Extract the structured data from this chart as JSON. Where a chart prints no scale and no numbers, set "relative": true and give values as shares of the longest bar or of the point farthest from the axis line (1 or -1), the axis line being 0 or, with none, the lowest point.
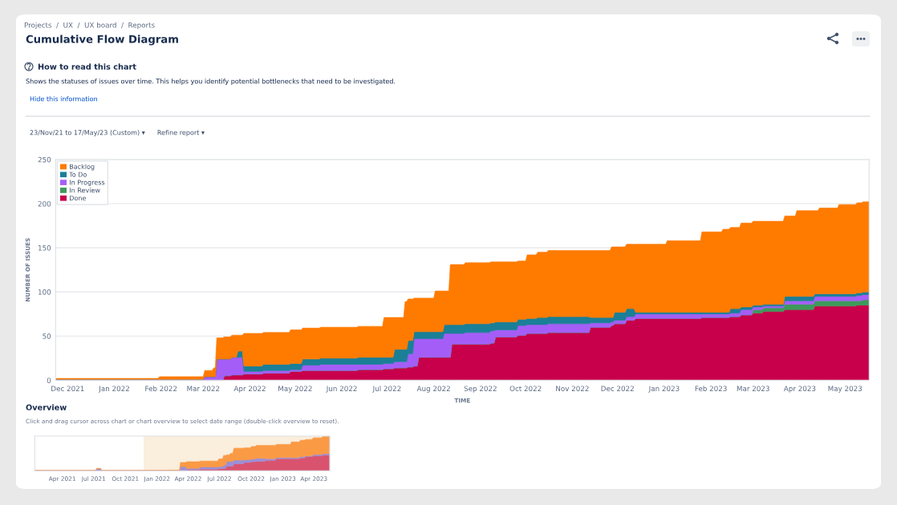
{
  "chart_data": [
    {
      "type": "area",
      "title": "Cumulative Flow Diagram",
      "subtitle": "How to read this chart",
      "annotations": [
        "Projects  /  UX  /  UX board  /  Reports",
        "Shows the statuses of issues over time. This helps you identify potential bottlenecks that need to be investigated.",
        "Hide this information",
        "23/Nov/21 to 17/May/23 (Custom) ▾",
        "Refine report ▾"
      ],
      "xlabel": "TIME",
      "ylabel": "NUMBER OF ISSUES",
      "x": [
        "2021-11-23",
        "2022-01-30",
        "2022-01-31",
        "2022-03-01",
        "2022-03-02",
        "2022-03-07",
        "2022-03-08",
        "2022-03-09",
        "2022-03-10",
        "2022-03-14",
        "2022-03-15",
        "2022-03-19",
        "2022-03-20",
        "2022-03-23",
        "2022-03-24",
        "2022-03-27",
        "2022-03-28",
        "2022-04-09",
        "2022-04-10",
        "2022-04-27",
        "2022-04-28",
        "2022-05-05",
        "2022-05-06",
        "2022-05-17",
        "2022-05-18",
        "2022-06-11",
        "2022-06-12",
        "2022-06-28",
        "2022-06-29",
        "2022-07-05",
        "2022-07-06",
        "2022-07-12",
        "2022-07-13",
        "2022-07-14",
        "2022-07-15",
        "2022-07-18",
        "2022-07-19",
        "2022-07-21",
        "2022-07-22",
        "2022-08-01",
        "2022-08-02",
        "2022-08-07",
        "2022-08-08",
        "2022-08-11",
        "2022-08-12",
        "2022-08-13",
        "2022-08-21",
        "2022-08-22",
        "2022-09-07",
        "2022-09-08",
        "2022-09-10",
        "2022-09-11",
        "2022-09-25",
        "2022-09-26",
        "2022-10-01",
        "2022-10-02",
        "2022-10-08",
        "2022-10-09",
        "2022-10-15",
        "2022-10-16",
        "2022-11-12",
        "2022-11-13",
        "2022-11-26",
        "2022-11-27",
        "2022-11-28",
        "2022-11-29",
        "2022-12-06",
        "2022-12-07",
        "2022-12-12",
        "2022-12-13",
        "2023-01-02",
        "2023-01-03",
        "2023-01-25",
        "2023-01-26",
        "2023-02-08",
        "2023-02-09",
        "2023-02-13",
        "2023-02-14",
        "2023-02-20",
        "2023-02-21",
        "2023-02-28",
        "2023-03-01",
        "2023-03-07",
        "2023-03-08",
        "2023-03-21",
        "2023-03-22",
        "2023-03-29",
        "2023-03-30",
        "2023-04-10",
        "2023-04-11",
        "2023-04-13",
        "2023-04-14",
        "2023-04-26",
        "2023-04-27",
        "2023-05-08",
        "2023-05-09",
        "2023-05-12",
        "2023-05-13",
        "2023-05-17"
      ],
      "stacked": true,
      "series": [
        {
          "name": "Done",
          "color": "#c8004b",
          "values": [
            0,
            0,
            0,
            0,
            0,
            0,
            0,
            0,
            0,
            0,
            5,
            5,
            6,
            6,
            6,
            6,
            7,
            7,
            8,
            8,
            10,
            10,
            11,
            11,
            11,
            11,
            12,
            12,
            13,
            13,
            14,
            14,
            14,
            14,
            15,
            15,
            16,
            16,
            26,
            26,
            26,
            26,
            26,
            26,
            26,
            41,
            41,
            41,
            41,
            42,
            42,
            49,
            49,
            51,
            51,
            53,
            53,
            53,
            53,
            54,
            54,
            60,
            60,
            62,
            62,
            64,
            64,
            68,
            68,
            70,
            70,
            70,
            70,
            71,
            71,
            71,
            71,
            72,
            72,
            74,
            74,
            76,
            76,
            78,
            78,
            80,
            80,
            80,
            80,
            84,
            84,
            84,
            84,
            84,
            84,
            85,
            85,
            85,
            85
          ]
        },
        {
          "name": "In Review",
          "color": "#3d9a5a",
          "values": [
            0,
            0,
            0,
            0,
            0,
            0,
            0,
            0,
            0,
            0,
            0,
            0,
            0,
            0,
            0,
            0,
            0,
            0,
            0,
            0,
            0,
            0,
            0,
            0,
            0,
            0,
            0,
            0,
            0,
            0,
            0,
            0,
            0,
            0,
            0,
            0,
            0,
            0,
            0,
            0,
            0,
            0,
            0,
            0,
            0,
            0,
            0,
            0,
            0,
            0,
            0,
            0,
            0,
            0,
            0,
            0,
            0,
            0,
            0,
            0,
            0,
            0,
            0,
            0,
            0,
            0,
            0,
            0,
            0,
            0,
            0,
            0,
            0,
            0,
            0,
            0,
            0,
            0,
            0,
            0,
            0,
            4,
            4,
            4,
            4,
            6,
            6,
            6,
            6,
            6,
            6,
            6,
            6,
            6,
            6,
            5,
            5,
            6,
            6
          ]
        },
        {
          "name": "In Progress",
          "color": "#a45ef7",
          "values": [
            1,
            1,
            1,
            1,
            4,
            4,
            4,
            4,
            24,
            24,
            19,
            19,
            20,
            20,
            20,
            20,
            3,
            3,
            3,
            3,
            2,
            2,
            6,
            6,
            7,
            7,
            6,
            6,
            6,
            6,
            7,
            7,
            7,
            7,
            15,
            15,
            31,
            31,
            21,
            21,
            21,
            21,
            27,
            27,
            27,
            12,
            12,
            13,
            13,
            14,
            14,
            8,
            8,
            11,
            11,
            10,
            10,
            10,
            10,
            10,
            10,
            5,
            5,
            4,
            4,
            4,
            4,
            4,
            4,
            5,
            5,
            5,
            5,
            4,
            4,
            4,
            4,
            4,
            4,
            6,
            6,
            3,
            3,
            2,
            2,
            4,
            4,
            4,
            4,
            5,
            5,
            5,
            5,
            5,
            5,
            6,
            6,
            6,
            6
          ]
        },
        {
          "name": "To Do",
          "color": "#1b7f97",
          "values": [
            0,
            0,
            0,
            0,
            0,
            0,
            0,
            0,
            0,
            0,
            0,
            0,
            0,
            0,
            7,
            7,
            6,
            6,
            7,
            7,
            7,
            7,
            7,
            7,
            7,
            7,
            8,
            8,
            7,
            7,
            14,
            14,
            14,
            14,
            15,
            15,
            8,
            8,
            8,
            8,
            8,
            8,
            10,
            10,
            10,
            10,
            10,
            10,
            10,
            9,
            9,
            9,
            9,
            7,
            7,
            7,
            7,
            8,
            8,
            8,
            8,
            6,
            6,
            5,
            5,
            9,
            9,
            9,
            9,
            2,
            2,
            2,
            2,
            2,
            2,
            2,
            2,
            5,
            5,
            3,
            3,
            2,
            2,
            2,
            2,
            5,
            5,
            5,
            5,
            3,
            3,
            3,
            3,
            3,
            3,
            3,
            3,
            3,
            3
          ]
        },
        {
          "name": "Backlog",
          "color": "#ff7b00",
          "values": [
            1,
            1,
            3,
            3,
            7,
            7,
            10,
            10,
            24,
            24,
            25,
            25,
            25,
            25,
            18,
            18,
            37,
            37,
            36,
            36,
            38,
            38,
            35,
            35,
            35,
            35,
            35,
            35,
            45,
            45,
            36,
            36,
            54,
            54,
            47,
            47,
            38,
            38,
            38,
            38,
            46,
            46,
            38,
            38,
            68,
            68,
            68,
            69,
            69,
            69,
            69,
            68,
            68,
            66,
            66,
            72,
            72,
            74,
            74,
            75,
            75,
            76,
            76,
            80,
            80,
            74,
            74,
            73,
            73,
            77,
            77,
            81,
            81,
            91,
            91,
            94,
            94,
            92,
            92,
            95,
            95,
            95,
            95,
            94,
            94,
            91,
            91,
            97,
            97,
            94,
            94,
            97,
            97,
            101,
            101,
            102,
            102,
            102,
            102
          ]
        }
      ],
      "xlim": [
        "2021-11-23",
        "2023-05-17"
      ],
      "xticks": [
        {
          "value": "2021-12-01",
          "label": "Dec 2021"
        },
        {
          "value": "2022-01-01",
          "label": "Jan 2022"
        },
        {
          "value": "2022-02-01",
          "label": "Feb 2022"
        },
        {
          "value": "2022-03-01",
          "label": "Mar 2022"
        },
        {
          "value": "2022-04-01",
          "label": "Apr 2022"
        },
        {
          "value": "2022-05-01",
          "label": "May 2022"
        },
        {
          "value": "2022-06-01",
          "label": "Jun 2022"
        },
        {
          "value": "2022-07-01",
          "label": "Jul 2022"
        },
        {
          "value": "2022-08-01",
          "label": "Aug 2022"
        },
        {
          "value": "2022-09-01",
          "label": "Sep 2022"
        },
        {
          "value": "2022-10-01",
          "label": "Oct 2022"
        },
        {
          "value": "2022-11-01",
          "label": "Nov 2022"
        },
        {
          "value": "2022-12-01",
          "label": "Dec 2022"
        },
        {
          "value": "2023-01-01",
          "label": "Jan 2023"
        },
        {
          "value": "2023-02-01",
          "label": "Feb 2023"
        },
        {
          "value": "2023-03-01",
          "label": "Mar 2023"
        },
        {
          "value": "2023-04-01",
          "label": "Apr 2023"
        },
        {
          "value": "2023-05-01",
          "label": "May 2023"
        }
      ],
      "ylim": [
        0,
        250
      ],
      "yticks": [
        0,
        50,
        100,
        150,
        200,
        250
      ],
      "grid": "y",
      "legend": "top left"
    },
    {
      "type": "area",
      "title": "Overview",
      "subtitle": "Click and drag cursor across chart or chart overview to select date range (double-click overview to reset).",
      "x": [
        "2021-01-11",
        "2021-07-07",
        "2021-07-10",
        "2021-07-21",
        "2021-07-24",
        "2022-01-28",
        "2022-01-31",
        "2022-03-07",
        "2022-03-10",
        "2022-03-25",
        "2022-03-28",
        "2022-05-03",
        "2022-05-06",
        "2022-06-26",
        "2022-06-29",
        "2022-07-10",
        "2022-07-13",
        "2022-07-19",
        "2022-07-22",
        "2022-07-30",
        "2022-08-02",
        "2022-08-09",
        "2022-08-12",
        "2022-09-08",
        "2022-09-11",
        "2022-09-29",
        "2022-10-02",
        "2022-10-13",
        "2022-10-16",
        "2022-11-10",
        "2022-11-13",
        "2022-12-10",
        "2022-12-13",
        "2023-01-23",
        "2023-01-26",
        "2023-02-18",
        "2023-02-21",
        "2023-03-05",
        "2023-03-08",
        "2023-03-27",
        "2023-03-30",
        "2023-04-24",
        "2023-04-27",
        "2023-05-17"
      ],
      "stacked": true,
      "relative": true,
      "series": [
        {
          "color": "#d9536f",
          "values": [
            0,
            0,
            0,
            0,
            0,
            0,
            0,
            0,
            0,
            0,
            0.03,
            0.03,
            0.05,
            0.05,
            0.06,
            0.06,
            0.07,
            0.07,
            0.13,
            0.13,
            0.13,
            0.13,
            0.2,
            0.2,
            0.24,
            0.24,
            0.26,
            0.26,
            0.27,
            0.27,
            0.3,
            0.3,
            0.35,
            0.35,
            0.35,
            0.35,
            0.37,
            0.37,
            0.41,
            0.41,
            0.43,
            0.43,
            0.45,
            0.45
          ]
        },
        {
          "color": "#9d8fd6",
          "values": [
            0,
            0,
            0.06,
            0.06,
            0,
            0,
            0,
            0,
            0.12,
            0.12,
            0.04,
            0.04,
            0.06,
            0.06,
            0.06,
            0.06,
            0.1,
            0.1,
            0.14,
            0.14,
            0.14,
            0.14,
            0.11,
            0.11,
            0.08,
            0.08,
            0.08,
            0.08,
            0.09,
            0.09,
            0.05,
            0.05,
            0.03,
            0.03,
            0.03,
            0.03,
            0.04,
            0.04,
            0.02,
            0.02,
            0.04,
            0.04,
            0.04,
            0.05
          ]
        },
        {
          "color": "#fb9a45",
          "values": [
            0.01,
            0.01,
            0.01,
            0.01,
            0.01,
            0.01,
            0.02,
            0.02,
            0.12,
            0.12,
            0.19,
            0.19,
            0.17,
            0.17,
            0.22,
            0.22,
            0.27,
            0.27,
            0.19,
            0.19,
            0.23,
            0.23,
            0.34,
            0.34,
            0.34,
            0.34,
            0.36,
            0.36,
            0.37,
            0.37,
            0.38,
            0.38,
            0.38,
            0.38,
            0.45,
            0.45,
            0.47,
            0.47,
            0.47,
            0.47,
            0.48,
            0.48,
            0.5,
            0.5
          ]
        }
      ],
      "xlim": [
        "2021-01-11",
        "2023-05-17"
      ],
      "xticks": [
        {
          "value": "2021-04-01",
          "label": "Apr 2021"
        },
        {
          "value": "2021-07-01",
          "label": "Jul 2021"
        },
        {
          "value": "2021-10-01",
          "label": "Oct 2021"
        },
        {
          "value": "2022-01-01",
          "label": "Jan 2022"
        },
        {
          "value": "2022-04-01",
          "label": "Apr 2022"
        },
        {
          "value": "2022-07-01",
          "label": "Jul 2022"
        },
        {
          "value": "2022-10-01",
          "label": "Oct 2022"
        },
        {
          "value": "2023-01-01",
          "label": "Jan 2023"
        },
        {
          "value": "2023-04-01",
          "label": "Apr 2023"
        }
      ],
      "bands": [
        {
          "axis": "x",
          "from": "2021-11-23",
          "to": "2023-05-17",
          "color": "#faeedd"
        }
      ],
      "tick_labels": "x"
    }
  ]
}
